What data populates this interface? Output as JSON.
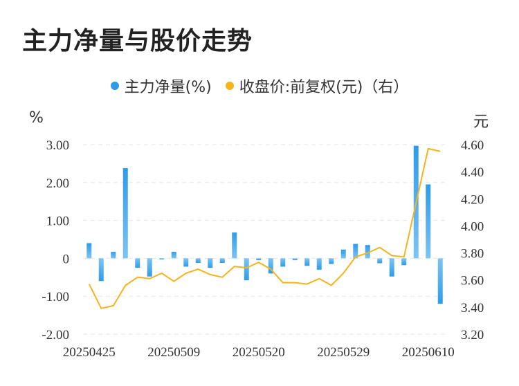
{
  "title": "主力净量与股价走势",
  "legend": {
    "bar_label": "主力净量(%)",
    "line_label": "收盘价:前复权(元)（右）",
    "bar_color": "#2E9BE8",
    "line_color": "#F5B31C"
  },
  "y_left_unit": "%",
  "y_right_unit": "元",
  "chart_data": {
    "type": "bar+line",
    "title": "主力净量与股价走势",
    "x_tick_labels": [
      "20250425",
      "20250509",
      "20250520",
      "20250529",
      "20250610"
    ],
    "x_tick_indices": [
      0,
      7,
      14,
      21,
      28
    ],
    "y_left": {
      "label": "%",
      "range": [
        -2,
        3
      ],
      "ticks": [
        -2,
        -1,
        0,
        1,
        2,
        3
      ],
      "tick_labels": [
        "-2.00",
        "-1.00",
        "0",
        "1.00",
        "2.00",
        "3.00"
      ]
    },
    "y_right": {
      "label": "元",
      "range": [
        3.2,
        4.6
      ],
      "ticks": [
        3.2,
        3.4,
        3.6,
        3.8,
        4.0,
        4.2,
        4.4,
        4.6
      ],
      "tick_labels": [
        "3.20",
        "3.40",
        "3.60",
        "3.80",
        "4.00",
        "4.20",
        "4.40",
        "4.60"
      ]
    },
    "series": [
      {
        "name": "主力净量(%)",
        "type": "bar",
        "axis": "left",
        "values": [
          0.4,
          -0.6,
          0.17,
          2.38,
          -0.25,
          -0.48,
          -0.03,
          0.17,
          -0.22,
          -0.12,
          -0.25,
          -0.12,
          0.68,
          -0.58,
          -0.05,
          -0.4,
          -0.22,
          -0.05,
          -0.2,
          -0.3,
          -0.15,
          0.23,
          0.38,
          0.35,
          -0.13,
          -0.48,
          -0.18,
          2.97,
          1.95,
          -1.2
        ]
      },
      {
        "name": "收盘价:前复权(元)（右）",
        "type": "line",
        "axis": "right",
        "values": [
          3.57,
          3.39,
          3.41,
          3.56,
          3.62,
          3.61,
          3.65,
          3.59,
          3.65,
          3.68,
          3.64,
          3.62,
          3.7,
          3.69,
          3.73,
          3.68,
          3.58,
          3.58,
          3.57,
          3.61,
          3.56,
          3.65,
          3.77,
          3.8,
          3.84,
          3.78,
          3.77,
          4.17,
          4.57,
          4.55
        ]
      }
    ]
  }
}
